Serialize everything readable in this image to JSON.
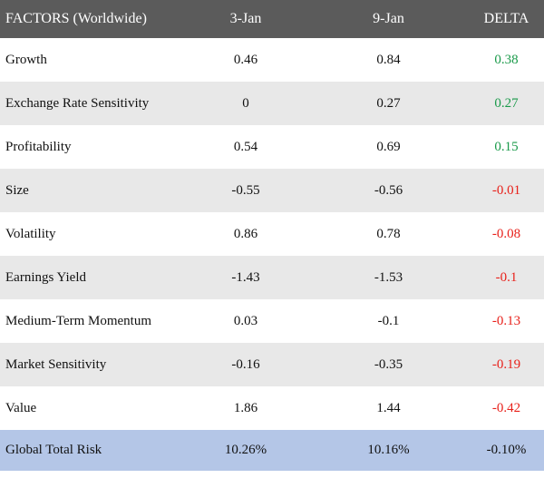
{
  "header": {
    "factor": "FACTORS (Worldwide)",
    "date_a": "3-Jan",
    "date_b": "9-Jan",
    "delta": "DELTA"
  },
  "rows": [
    {
      "name": "Growth",
      "a": "0.46",
      "b": "0.84",
      "delta": "0.38",
      "sign": "pos"
    },
    {
      "name": "Exchange Rate Sensitivity",
      "a": "0",
      "b": "0.27",
      "delta": "0.27",
      "sign": "pos"
    },
    {
      "name": "Profitability",
      "a": "0.54",
      "b": "0.69",
      "delta": "0.15",
      "sign": "pos"
    },
    {
      "name": "Size",
      "a": "-0.55",
      "b": "-0.56",
      "delta": "-0.01",
      "sign": "neg"
    },
    {
      "name": "Volatility",
      "a": "0.86",
      "b": "0.78",
      "delta": "-0.08",
      "sign": "neg"
    },
    {
      "name": "Earnings Yield",
      "a": "-1.43",
      "b": "-1.53",
      "delta": "-0.1",
      "sign": "neg"
    },
    {
      "name": "Medium-Term Momentum",
      "a": "0.03",
      "b": "-0.1",
      "delta": "-0.13",
      "sign": "neg"
    },
    {
      "name": "Market Sensitivity",
      "a": "-0.16",
      "b": "-0.35",
      "delta": "-0.19",
      "sign": "neg"
    },
    {
      "name": "Value",
      "a": "1.86",
      "b": "1.44",
      "delta": "-0.42",
      "sign": "neg"
    }
  ],
  "total": {
    "name": "Global Total Risk",
    "a": "10.26%",
    "b": "10.16%",
    "delta": "-0.10%"
  },
  "colors": {
    "header_bg": "#5b5b5b",
    "alt_row_bg": "#e8e8e8",
    "total_row_bg": "#b4c6e7",
    "positive": "#1a9a4a",
    "negative": "#e8201a"
  }
}
